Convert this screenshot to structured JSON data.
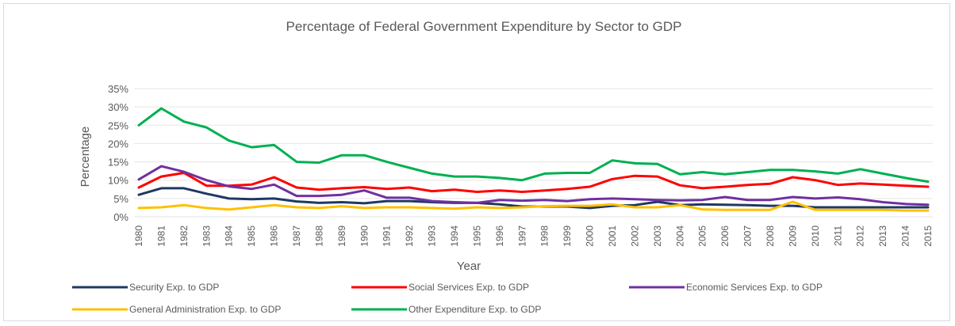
{
  "chart_data": {
    "type": "line",
    "title": "Percentage of Federal Government Expenditure by Sector to GDP",
    "xlabel": "Year",
    "ylabel": "Percentage",
    "ylim": [
      0,
      35
    ],
    "y_ticks": [
      "0%",
      "5%",
      "10%",
      "15%",
      "20%",
      "25%",
      "30%",
      "35%"
    ],
    "grid": "horizontal",
    "legend": "bottom",
    "categories": [
      "1980",
      "1981",
      "1982",
      "1983",
      "1984",
      "1985",
      "1986",
      "1987",
      "1988",
      "1989",
      "1990",
      "1991",
      "1992",
      "1993",
      "1994",
      "1995",
      "1996",
      "1997",
      "1998",
      "1999",
      "2000",
      "2001",
      "2002",
      "2003",
      "2004",
      "2005",
      "2006",
      "2007",
      "2008",
      "2009",
      "2010",
      "2011",
      "2012",
      "2013",
      "2014",
      "2015"
    ],
    "series": [
      {
        "name": "Security Exp. to GDP",
        "color": "#1f3864",
        "values": [
          6.0,
          7.8,
          7.8,
          6.3,
          5.0,
          4.8,
          5.0,
          4.2,
          3.8,
          4.0,
          3.7,
          4.3,
          4.3,
          4.0,
          3.8,
          3.8,
          3.4,
          2.8,
          2.8,
          2.8,
          2.4,
          3.0,
          3.2,
          4.1,
          3.2,
          3.4,
          3.3,
          3.2,
          3.0,
          3.0,
          2.6,
          2.6,
          2.6,
          2.6,
          2.6,
          2.6
        ]
      },
      {
        "name": "Social Services Exp. to GDP",
        "color": "#ff0000",
        "values": [
          8.0,
          11.0,
          12.0,
          8.5,
          8.5,
          8.8,
          10.8,
          8.0,
          7.4,
          7.8,
          8.1,
          7.6,
          8.0,
          7.0,
          7.4,
          6.8,
          7.2,
          6.8,
          7.2,
          7.6,
          8.2,
          10.3,
          11.2,
          11.0,
          8.6,
          7.8,
          8.2,
          8.7,
          9.0,
          10.8,
          10.0,
          8.7,
          9.1,
          8.8,
          8.5,
          8.2
        ]
      },
      {
        "name": "Economic Services Exp. to GDP",
        "color": "#7030a0",
        "values": [
          10.2,
          13.8,
          12.3,
          10.0,
          8.3,
          7.6,
          8.8,
          5.7,
          5.7,
          6.0,
          7.2,
          5.2,
          5.2,
          4.3,
          4.0,
          3.8,
          4.6,
          4.4,
          4.6,
          4.3,
          4.8,
          5.0,
          4.8,
          4.6,
          4.5,
          4.6,
          5.4,
          4.6,
          4.6,
          5.4,
          5.0,
          5.3,
          4.8,
          4.0,
          3.5,
          3.3
        ]
      },
      {
        "name": "General Administration Exp. to GDP",
        "color": "#ffc000",
        "values": [
          2.4,
          2.6,
          3.2,
          2.4,
          2.0,
          2.6,
          3.2,
          2.6,
          2.4,
          2.9,
          2.4,
          2.6,
          2.6,
          2.4,
          2.2,
          2.6,
          2.4,
          2.6,
          2.9,
          3.0,
          3.0,
          3.4,
          2.6,
          2.6,
          3.2,
          2.0,
          1.9,
          1.9,
          1.9,
          4.1,
          1.9,
          1.9,
          1.9,
          1.9,
          1.7,
          1.7
        ]
      },
      {
        "name": "Other Expenditure Exp. to GDP",
        "color": "#00b050",
        "values": [
          25.0,
          29.6,
          26.0,
          24.4,
          20.8,
          19.0,
          19.6,
          15.0,
          14.8,
          16.8,
          16.8,
          15.0,
          13.4,
          11.8,
          11.0,
          11.0,
          10.6,
          10.0,
          11.8,
          12.0,
          12.0,
          15.4,
          14.6,
          14.4,
          11.6,
          12.2,
          11.6,
          12.2,
          12.8,
          12.8,
          12.4,
          11.8,
          13.0,
          11.8,
          10.6,
          9.6
        ]
      }
    ]
  }
}
